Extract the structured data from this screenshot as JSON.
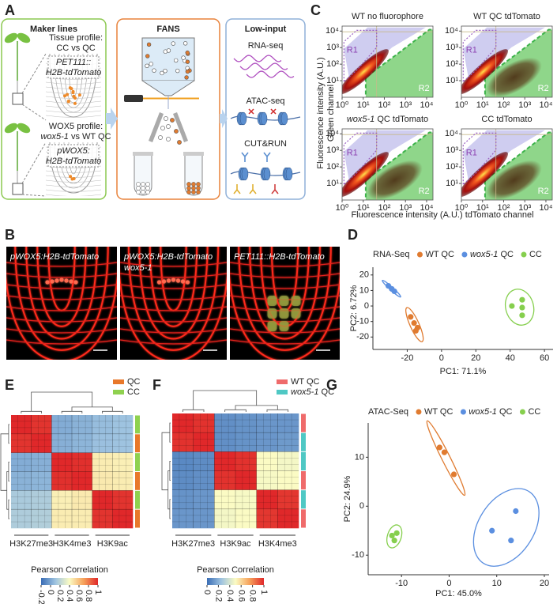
{
  "panel_a": {
    "label": "A",
    "marker_lines": {
      "title": "Maker lines",
      "tissue_profile": "Tissue profile:",
      "tissue_comparison": "CC vs QC",
      "tissue_construct": [
        "PET111::",
        "H2B-tdTomato"
      ],
      "wox5_profile": "WOX5 profile:",
      "wox5_comparison": "wox5-1 vs WT QC",
      "wox5_construct": [
        "pWOX5:",
        "H2B-tdTomato"
      ]
    },
    "fans": {
      "title": "FANS"
    },
    "low_input": {
      "title": "Low-input",
      "methods": [
        "RNA-seq",
        "ATAC-seq",
        "CUT&RUN"
      ]
    }
  },
  "panel_b": {
    "label": "B",
    "images": [
      [
        "pWOX5:H2B-tdTomato"
      ],
      [
        "pWOX5:H2B-tdTomato",
        "wox5-1"
      ],
      [
        "PET111::H2B-tdTomato"
      ]
    ]
  },
  "panel_c": {
    "label": "C",
    "y_label": [
      "Fluorescence intensity (A.U.)",
      "Green channel"
    ],
    "x_label": "Fluorescence intensity (A.U.) tdTomato channel",
    "log": true,
    "xlim": [
      1,
      20000
    ],
    "ylim": [
      1,
      20000
    ],
    "xticks": [
      {
        "value": 1,
        "label": "10⁰"
      },
      {
        "value": 10,
        "label": "10¹"
      },
      {
        "value": 100,
        "label": "10²"
      },
      {
        "value": 1000,
        "label": "10³"
      },
      {
        "value": 10000,
        "label": "10⁴"
      }
    ],
    "yticks": [
      {
        "value": 10,
        "label": "10¹"
      },
      {
        "value": 100,
        "label": "10²"
      },
      {
        "value": 1000,
        "label": "10³"
      },
      {
        "value": 10000,
        "label": "10⁴"
      }
    ],
    "gates": [
      "R1",
      "R2"
    ],
    "plots": [
      "WT no fluorophore",
      "WT QC tdTomato",
      "wox5-1 QC tdTomato",
      "CC tdTomato"
    ]
  },
  "chart_data": [
    {
      "label": "D",
      "type": "scatter",
      "legend_title": "RNA-Seq",
      "x_label": "PC1: 71.1%",
      "y_label": "PC2: 6.72%",
      "xlim": [
        -40,
        65
      ],
      "ylim": [
        -28,
        25
      ],
      "xticks": [
        -20,
        0,
        20,
        40,
        60
      ],
      "yticks": [
        -20,
        -10,
        0,
        10,
        20
      ],
      "ellipses": true,
      "series": [
        {
          "name": "WT QC",
          "color": "#e07b30",
          "x": [
            -18,
            -16,
            -14,
            -15
          ],
          "values": [
            -7,
            -11,
            -14,
            -16
          ]
        },
        {
          "name": "wox5-1 QC",
          "color": "#5b8fe0",
          "x": [
            -31,
            -29,
            -27.5
          ],
          "values": [
            13,
            11,
            9.5
          ]
        },
        {
          "name": "CC",
          "color": "#86cf4e",
          "x": [
            47,
            41,
            47,
            47
          ],
          "values": [
            4,
            0,
            -1,
            -6
          ]
        }
      ]
    },
    {
      "label": "E",
      "type": "heatmap",
      "legend": [
        {
          "name": "QC",
          "color": "#e8782a"
        },
        {
          "name": "CC",
          "color": "#8fd14f"
        }
      ],
      "row_groups": [
        1,
        0,
        1,
        0,
        1,
        0
      ],
      "column_labels": [
        "H3K27me3",
        "H3K4me3",
        "H3K9ac"
      ],
      "values": [
        [
          1,
          0.97,
          0.02,
          0.04,
          0.08,
          0.1
        ],
        [
          0.97,
          1,
          0.03,
          0.05,
          0.09,
          0.1
        ],
        [
          0.02,
          0.03,
          1,
          0.98,
          0.45,
          0.44
        ],
        [
          0.04,
          0.05,
          0.98,
          1,
          0.46,
          0.45
        ],
        [
          0.14,
          0.15,
          0.44,
          0.46,
          1,
          0.97
        ],
        [
          0.15,
          0.16,
          0.45,
          0.45,
          0.97,
          1
        ]
      ],
      "colorbar_title": "Pearson Correlation",
      "clim": [
        -0.2,
        1
      ],
      "cticks": [
        -0.2,
        0,
        0.2,
        0.4,
        0.6,
        0.8,
        1
      ],
      "colors": [
        "#3a6db5",
        "#9ec3e0",
        "#fbfbc4",
        "#f6a15a",
        "#e0282a"
      ]
    },
    {
      "label": "F",
      "type": "heatmap",
      "legend": [
        {
          "name": "WT QC",
          "color": "#ef6b6b"
        },
        {
          "name": "wox5-1 QC",
          "color": "#4fc8c4"
        }
      ],
      "row_groups": [
        0,
        1,
        1,
        0,
        1,
        0
      ],
      "column_labels": [
        "H3K27me3",
        "H3K9ac",
        "H3K4me3"
      ],
      "values": [
        [
          1,
          0.98,
          0.1,
          0.11,
          0.12,
          0.12
        ],
        [
          0.98,
          1,
          0.1,
          0.11,
          0.12,
          0.13
        ],
        [
          0.08,
          0.09,
          1,
          0.98,
          0.5,
          0.48
        ],
        [
          0.09,
          0.1,
          0.98,
          1,
          0.49,
          0.5
        ],
        [
          0.11,
          0.12,
          0.5,
          0.49,
          1,
          0.97
        ],
        [
          0.12,
          0.12,
          0.48,
          0.5,
          0.97,
          1
        ]
      ],
      "colorbar_title": "Pearson Correlation",
      "clim": [
        0,
        1
      ],
      "cticks": [
        0,
        0.2,
        0.4,
        0.6,
        0.8,
        1
      ],
      "colors": [
        "#3a6db5",
        "#9ec3e0",
        "#fbfbc4",
        "#f6a15a",
        "#e0282a"
      ]
    },
    {
      "label": "G",
      "type": "scatter",
      "legend_title": "ATAC-Seq",
      "x_label": "PC1: 45.0%",
      "y_label": "PC2: 24.9%",
      "xlim": [
        -17,
        21
      ],
      "ylim": [
        -14,
        17
      ],
      "xticks": [
        -10,
        0,
        10,
        20
      ],
      "yticks": [
        -10,
        0,
        10
      ],
      "ellipses": true,
      "series": [
        {
          "name": "WT QC",
          "color": "#e07b30",
          "x": [
            -2,
            -1,
            1
          ],
          "values": [
            12,
            11,
            6.5
          ]
        },
        {
          "name": "wox5-1 QC",
          "color": "#5b8fe0",
          "x": [
            9,
            14,
            13
          ],
          "values": [
            -5,
            -1,
            -7
          ]
        },
        {
          "name": "CC",
          "color": "#86cf4e",
          "x": [
            -12,
            -11.5,
            -11
          ],
          "values": [
            -6,
            -7,
            -5.5
          ]
        }
      ]
    }
  ]
}
